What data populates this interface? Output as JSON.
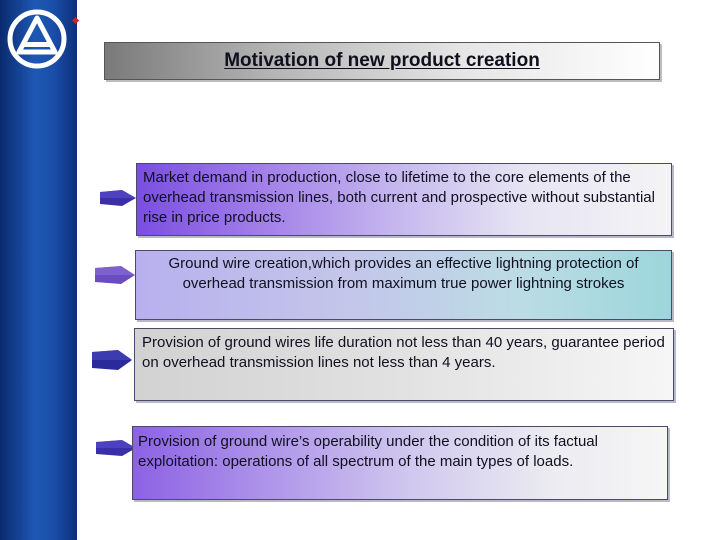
{
  "slide": {
    "title": "Motivation of new product creation",
    "brand_color": "#1a4ea8",
    "accent_dot_color": "#cc2222",
    "logo_icon": "triangle-in-circle-logo-icon"
  },
  "points": [
    {
      "text": "Market demand in production, close to lifetime to the core elements of the overhead transmission lines, both current and prospective without substantial rise in price products.",
      "marker_icon": "arrow-bullet-icon",
      "marker_color": "#3a2fa8"
    },
    {
      "text": "Ground wire creation,which provides an effective lightning protection of overhead transmission from maximum true power lightning strokes",
      "marker_icon": "arrow-bullet-icon",
      "marker_color": "#6a4cc0"
    },
    {
      "text": "Provision of ground wires life duration  not less than 40 years, guarantee period on overhead transmission lines not less than 4 years.",
      "marker_icon": "arrow-bullet-icon",
      "marker_color": "#2a2a9a"
    },
    {
      "text": "Provision of ground wire’s operability under the condition of its factual exploitation: operations of all spectrum of the main types of loads.",
      "marker_icon": "arrow-bullet-icon",
      "marker_color": "#3a2fa8"
    }
  ]
}
